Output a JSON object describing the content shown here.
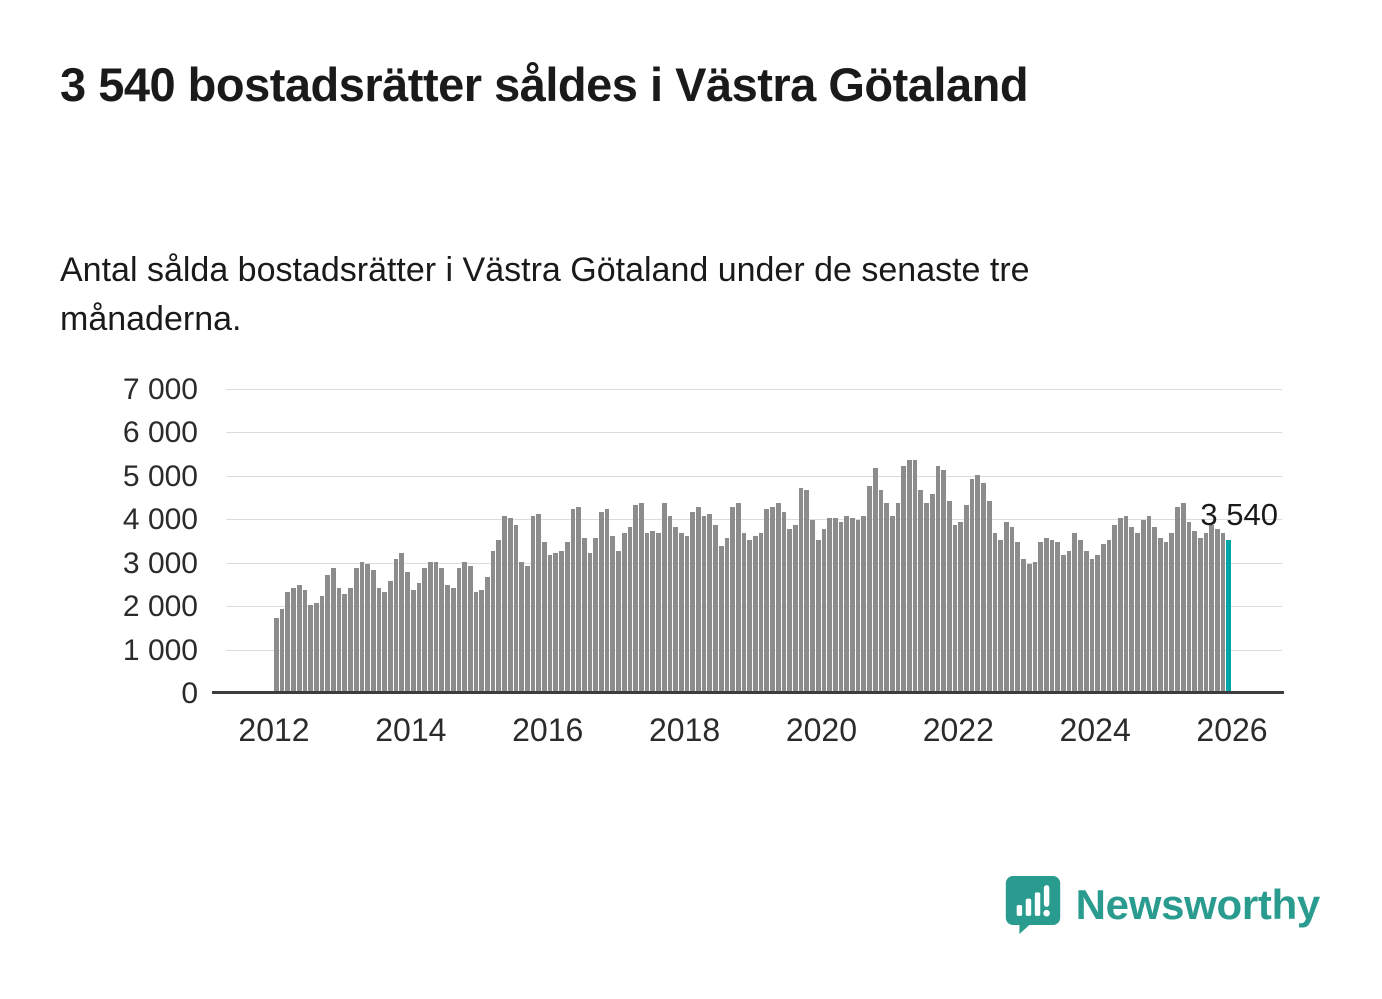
{
  "title": "3 540 bostadsrätter såldes i Västra Götaland",
  "subtitle": "Antal sålda bostadsrätter i Västra Götaland under de senaste tre månaderna.",
  "annotation": "3 540",
  "brand": {
    "name": "Newsworthy",
    "color": "#2a9c8f"
  },
  "colors": {
    "bar": "#8c8c8c",
    "highlight": "#00a5a8",
    "grid": "#dcdcdc",
    "axis": "#3d3d3d",
    "text": "#1a1a1a"
  },
  "chart_data": {
    "type": "bar",
    "title": "3 540 bostadsrätter såldes i Västra Götaland",
    "xlabel": "",
    "ylabel": "",
    "x_start_year": 2012,
    "x_months": 168,
    "ylim": [
      0,
      7000
    ],
    "yticks": [
      0,
      1000,
      2000,
      3000,
      4000,
      5000,
      6000,
      7000
    ],
    "ytick_labels": [
      "0",
      "1 000",
      "2 000",
      "3 000",
      "4 000",
      "5 000",
      "6 000",
      "7 000"
    ],
    "xticks": [
      2012,
      2014,
      2016,
      2018,
      2020,
      2022,
      2024,
      2026
    ],
    "grid": true,
    "legend": false,
    "highlight_last": true,
    "last_value_label": "3 540",
    "values": [
      1750,
      1950,
      2350,
      2450,
      2500,
      2400,
      2050,
      2100,
      2250,
      2750,
      2900,
      2450,
      2300,
      2450,
      2900,
      3050,
      3000,
      2850,
      2450,
      2350,
      2600,
      3100,
      3250,
      2800,
      2400,
      2550,
      2900,
      3050,
      3050,
      2900,
      2500,
      2450,
      2900,
      3050,
      2950,
      2350,
      2400,
      2700,
      3300,
      3550,
      4100,
      4050,
      3900,
      3050,
      2950,
      4100,
      4150,
      3500,
      3200,
      3250,
      3300,
      3500,
      4250,
      4300,
      3600,
      3250,
      3600,
      4200,
      4250,
      3650,
      3300,
      3700,
      3850,
      4350,
      4400,
      3700,
      3750,
      3700,
      4400,
      4100,
      3850,
      3700,
      3650,
      4200,
      4300,
      4100,
      4150,
      3900,
      3400,
      3600,
      4300,
      4400,
      3700,
      3550,
      3650,
      3700,
      4250,
      4300,
      4400,
      4200,
      3800,
      3900,
      4750,
      4700,
      4000,
      3550,
      3800,
      4050,
      4050,
      3950,
      4100,
      4050,
      4000,
      4100,
      4800,
      5200,
      4700,
      4400,
      4100,
      4400,
      5250,
      5400,
      5400,
      4700,
      4400,
      4600,
      5250,
      5150,
      4450,
      3900,
      3950,
      4350,
      4950,
      5050,
      4850,
      4450,
      3700,
      3550,
      3950,
      3850,
      3500,
      3100,
      3000,
      3050,
      3500,
      3600,
      3550,
      3500,
      3200,
      3300,
      3700,
      3550,
      3300,
      3100,
      3200,
      3450,
      3550,
      3900,
      4050,
      4100,
      3850,
      3700,
      4000,
      4100,
      3850,
      3600,
      3500,
      3700,
      4300,
      4400,
      3950,
      3750,
      3600,
      3700,
      3900,
      3800,
      3700,
      3540
    ]
  }
}
